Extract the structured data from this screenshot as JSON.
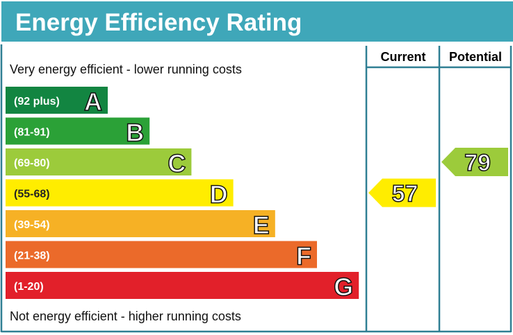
{
  "title": "Energy Efficiency Rating",
  "top_note": "Very energy efficient - lower running costs",
  "bottom_note": "Not energy efficient - higher running costs",
  "columns": {
    "current": "Current",
    "potential": "Potential"
  },
  "header_color": "#3fa7b9",
  "chart_data": {
    "type": "bar",
    "categories": [
      "A",
      "B",
      "C",
      "D",
      "E",
      "F",
      "G"
    ],
    "ranges": [
      "(92 plus)",
      "(81-91)",
      "(69-80)",
      "(55-68)",
      "(39-54)",
      "(21-38)",
      "(1-20)"
    ],
    "colors": [
      "#128541",
      "#2ba137",
      "#9ccb3b",
      "#ffed00",
      "#f6b125",
      "#eb6a2a",
      "#e2202a"
    ],
    "current": {
      "value": 57,
      "band": "D",
      "color": "#ffed00"
    },
    "potential": {
      "value": 79,
      "band": "C",
      "color": "#9ccb3b"
    }
  }
}
